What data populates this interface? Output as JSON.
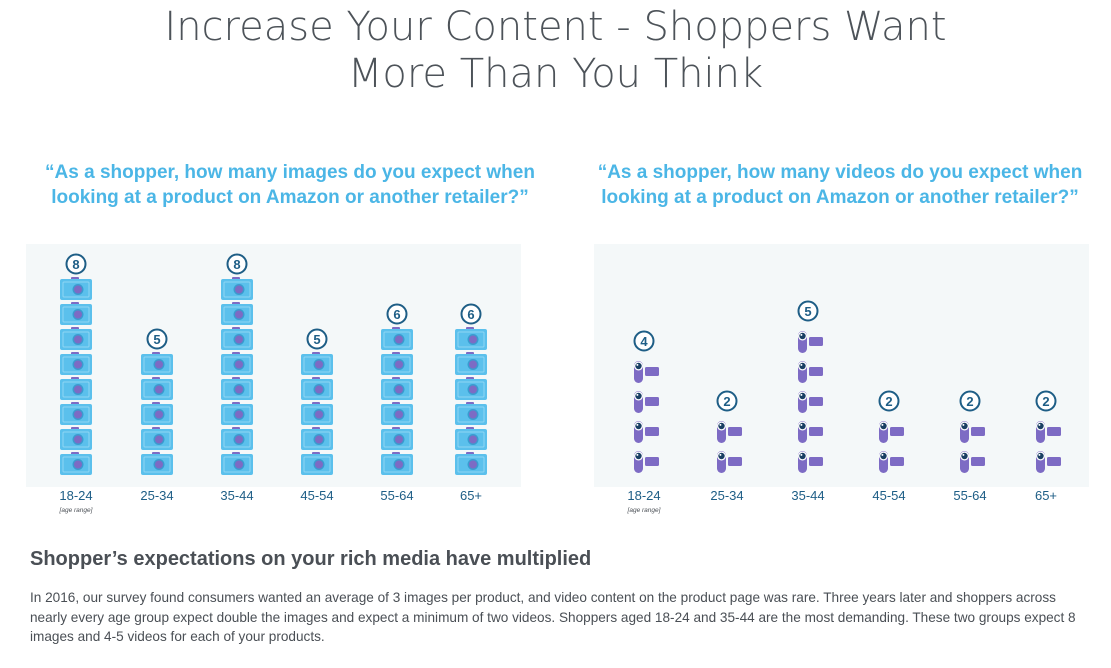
{
  "title": {
    "line1": "Increase Your Content - Shoppers Want",
    "line2": "More Than You Think"
  },
  "colors": {
    "title": "#4d5359",
    "question": "#4bb6e6",
    "camera": "#5bc0ec",
    "camera_lens": "#7d6bc4",
    "camcorder": "#7d6bc4",
    "badge": "#1e5e86",
    "axis_label": "#1e5e86",
    "panel": "#f4f8f9"
  },
  "chart_data": [
    {
      "type": "bar",
      "icon": "camera-icon",
      "question": {
        "line1": "“As a shopper, how many images do you expect when",
        "line2": "looking at a product on Amazon or another retailer?”"
      },
      "categories": [
        "18-24",
        "25-34",
        "35-44",
        "45-54",
        "55-64",
        "65+"
      ],
      "values": [
        8,
        5,
        8,
        5,
        6,
        6
      ],
      "axis_note": "[age range]",
      "ylim": [
        0,
        8
      ]
    },
    {
      "type": "bar",
      "icon": "camcorder-icon",
      "question": {
        "line1": "“As a shopper, how many videos do you expect when",
        "line2": "looking at a product on Amazon or another retailer?”"
      },
      "categories": [
        "18-24",
        "25-34",
        "35-44",
        "45-54",
        "55-64",
        "65+"
      ],
      "values": [
        4,
        2,
        5,
        2,
        2,
        2
      ],
      "axis_note": "[age range]",
      "ylim": [
        0,
        5
      ]
    }
  ],
  "summary": {
    "heading": "Shopper’s expectations on your rich media have multiplied",
    "body": "In 2016, our survey found consumers wanted an average of 3 images per product, and video content on the product page was rare. Three years later and shoppers across nearly every age group expect double the images and expect a minimum of two videos. Shoppers aged 18-24 and 35-44 are the most demanding. These two groups expect 8 images and 4-5 videos for each of your products."
  }
}
